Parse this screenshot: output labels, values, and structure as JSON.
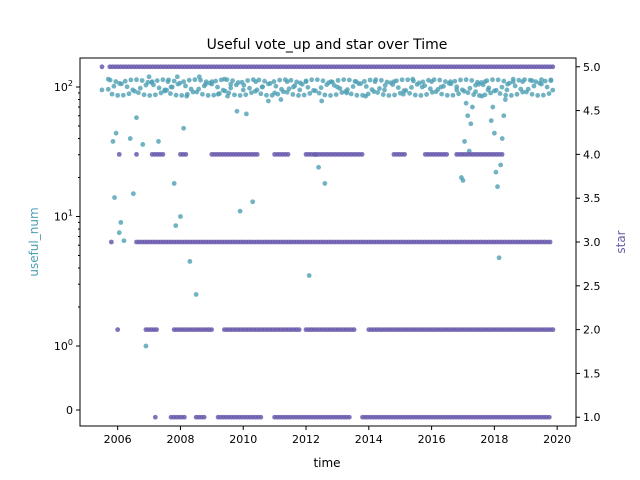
{
  "chart_data": {
    "type": "scatter",
    "title": "Useful vote_up and star over Time",
    "xlabel": "time",
    "ylabel_left": "useful_num",
    "ylabel_right": "star",
    "x_ticks": [
      "2006",
      "2008",
      "2010",
      "2012",
      "2014",
      "2016",
      "2018",
      "2020"
    ],
    "left_ticks": [
      "0",
      "10^0",
      "10^1",
      "10^2"
    ],
    "right_ticks": [
      "1.0",
      "1.5",
      "2.0",
      "2.5",
      "3.0",
      "3.5",
      "4.0",
      "4.5",
      "5.0"
    ],
    "x_range": [
      2004.8,
      2020.6
    ],
    "left_scale": "symlog",
    "right_range": [
      0.9,
      5.1
    ],
    "grid": false,
    "series": [
      {
        "axis": "left",
        "color": "#4d9fb4",
        "points": [
          [
            2005.5,
            95
          ],
          [
            2005.7,
            115
          ],
          [
            2005.85,
            38
          ],
          [
            2005.9,
            14
          ],
          [
            2005.95,
            44
          ],
          [
            2006.05,
            7.5
          ],
          [
            2006.1,
            9
          ],
          [
            2006.2,
            6.5
          ],
          [
            2006.4,
            40
          ],
          [
            2006.5,
            15
          ],
          [
            2006.6,
            58
          ],
          [
            2006.8,
            36
          ],
          [
            2006.9,
            1
          ],
          [
            2007.0,
            120
          ],
          [
            2007.1,
            110
          ],
          [
            2007.3,
            38
          ],
          [
            2007.5,
            95
          ],
          [
            2007.6,
            110
          ],
          [
            2007.7,
            100
          ],
          [
            2007.8,
            18
          ],
          [
            2007.85,
            8.5
          ],
          [
            2007.9,
            120
          ],
          [
            2008.0,
            10
          ],
          [
            2008.1,
            48
          ],
          [
            2008.2,
            85
          ],
          [
            2008.3,
            4.5
          ],
          [
            2008.5,
            2.5
          ],
          [
            2008.6,
            120
          ],
          [
            2008.8,
            105
          ],
          [
            2009.0,
            110
          ],
          [
            2009.2,
            88
          ],
          [
            2009.4,
            115
          ],
          [
            2009.5,
            85
          ],
          [
            2009.6,
            105
          ],
          [
            2009.8,
            65
          ],
          [
            2009.9,
            11
          ],
          [
            2010.0,
            95
          ],
          [
            2010.1,
            62
          ],
          [
            2010.3,
            13
          ],
          [
            2010.4,
            110
          ],
          [
            2010.6,
            100
          ],
          [
            2010.8,
            78
          ],
          [
            2011.0,
            90
          ],
          [
            2011.2,
            80
          ],
          [
            2011.4,
            110
          ],
          [
            2011.6,
            100
          ],
          [
            2011.8,
            95
          ],
          [
            2012.0,
            110
          ],
          [
            2012.1,
            3.5
          ],
          [
            2012.3,
            30
          ],
          [
            2012.4,
            24
          ],
          [
            2012.6,
            18
          ],
          [
            2012.5,
            78
          ],
          [
            2012.8,
            110
          ],
          [
            2013.0,
            100
          ],
          [
            2013.3,
            90
          ],
          [
            2013.6,
            110
          ],
          [
            2013.9,
            85
          ],
          [
            2014.2,
            110
          ],
          [
            2014.5,
            95
          ],
          [
            2014.8,
            110
          ],
          [
            2015.1,
            88
          ],
          [
            2015.4,
            115
          ],
          [
            2015.7,
            100
          ],
          [
            2016.0,
            110
          ],
          [
            2016.3,
            100
          ],
          [
            2016.6,
            110
          ],
          [
            2016.8,
            95
          ],
          [
            2016.95,
            20
          ],
          [
            2017.0,
            19
          ],
          [
            2017.05,
            38
          ],
          [
            2017.1,
            75
          ],
          [
            2017.15,
            60
          ],
          [
            2017.2,
            32
          ],
          [
            2017.25,
            52
          ],
          [
            2017.3,
            70
          ],
          [
            2017.4,
            92
          ],
          [
            2017.5,
            105
          ],
          [
            2017.6,
            85
          ],
          [
            2017.7,
            110
          ],
          [
            2017.8,
            95
          ],
          [
            2017.9,
            55
          ],
          [
            2017.95,
            70
          ],
          [
            2018.0,
            44
          ],
          [
            2018.05,
            22
          ],
          [
            2018.1,
            17
          ],
          [
            2018.15,
            4.8
          ],
          [
            2018.2,
            25
          ],
          [
            2018.25,
            40
          ],
          [
            2018.3,
            60
          ],
          [
            2018.35,
            80
          ],
          [
            2018.4,
            95
          ],
          [
            2018.6,
            115
          ],
          [
            2018.9,
            110
          ],
          [
            2019.2,
            112
          ],
          [
            2019.5,
            114
          ],
          [
            2019.8,
            112
          ]
        ]
      },
      {
        "axis": "right",
        "color": "#6b5aad",
        "levels": [
          {
            "star": 5.0,
            "segments": [
              [
                2005.5,
                2005.5
              ],
              [
                2005.75,
                2019.9
              ]
            ]
          },
          {
            "star": 4.0,
            "segments": [
              [
                2006.05,
                2006.05
              ],
              [
                2006.6,
                2006.6
              ],
              [
                2007.1,
                2007.5
              ],
              [
                2008.0,
                2008.2
              ],
              [
                2009.0,
                2010.5
              ],
              [
                2011.0,
                2011.5
              ],
              [
                2012.0,
                2013.8
              ],
              [
                2014.8,
                2015.2
              ],
              [
                2015.8,
                2016.5
              ],
              [
                2016.8,
                2018.3
              ]
            ]
          },
          {
            "star": 3.0,
            "segments": [
              [
                2005.8,
                2005.8
              ],
              [
                2006.6,
                2019.8
              ]
            ]
          },
          {
            "star": 2.0,
            "segments": [
              [
                2006.0,
                2006.0
              ],
              [
                2006.9,
                2007.3
              ],
              [
                2007.8,
                2009.0
              ],
              [
                2009.4,
                2011.8
              ],
              [
                2012.0,
                2013.6
              ],
              [
                2014.0,
                2019.9
              ]
            ]
          },
          {
            "star": 1.0,
            "segments": [
              [
                2007.2,
                2007.2
              ],
              [
                2007.7,
                2008.2
              ],
              [
                2008.5,
                2008.8
              ],
              [
                2009.2,
                2010.6
              ],
              [
                2011.0,
                2013.4
              ],
              [
                2013.8,
                2019.8
              ]
            ]
          }
        ]
      }
    ]
  }
}
